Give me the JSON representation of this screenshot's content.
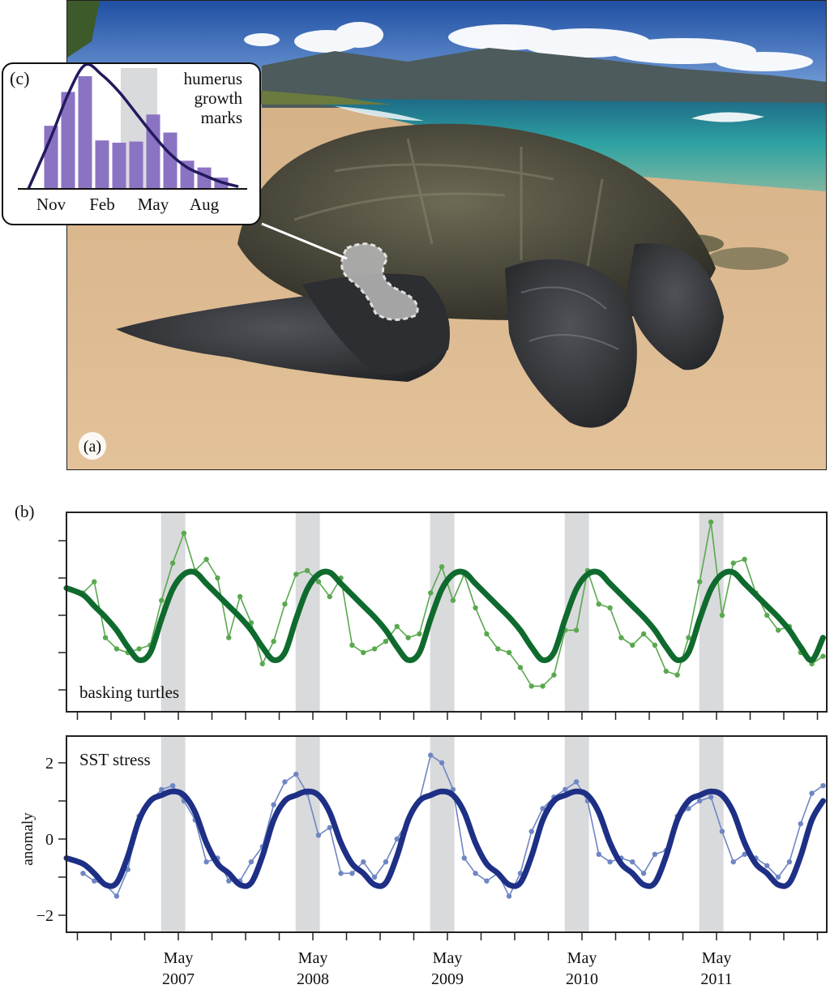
{
  "panel_a": {
    "label": "(a)",
    "inset_line_color": "#ffffff"
  },
  "chart_data": [
    {
      "panel": "(c)",
      "type": "bar",
      "title": "humerus growth marks",
      "title_lines": [
        "humerus",
        "growth",
        "marks"
      ],
      "categories": [
        "Nov",
        "Dec",
        "Jan",
        "Feb",
        "Mar",
        "Apr",
        "May",
        "Jun",
        "Jul",
        "Aug",
        "Sep"
      ],
      "tick_labels": [
        "Nov",
        "Feb",
        "May",
        "Aug"
      ],
      "values_relative": [
        56,
        86,
        100,
        43,
        41,
        42,
        66,
        50,
        25,
        19,
        10
      ],
      "density_curve": {
        "months": [
          "Oct",
          "Nov",
          "Dec",
          "Jan",
          "Feb",
          "Mar",
          "Apr",
          "May",
          "Jun",
          "Jul",
          "Aug",
          "Sep",
          "Oct"
        ],
        "values_relative": [
          0,
          46,
          84,
          110,
          101,
          86,
          67,
          48,
          31,
          19,
          12,
          6,
          2
        ]
      },
      "shaded_months": [
        "Mar",
        "May"
      ],
      "colors": {
        "bars": "#8b73c3",
        "curve": "#231a5e",
        "shade": "#d9dadc"
      }
    },
    {
      "panel": "(b)",
      "type": "line",
      "x_start": "2006-07",
      "x_end": "2012-02",
      "x_tick_labels": [
        {
          "month": "May",
          "year": "2007"
        },
        {
          "month": "May",
          "year": "2008"
        },
        {
          "month": "May",
          "year": "2009"
        },
        {
          "month": "May",
          "year": "2010"
        },
        {
          "month": "May",
          "year": "2011"
        }
      ],
      "x_ticks": "quarterly (Feb, May, Aug, Nov)",
      "shaded_periods": [
        [
          "2007-03-15",
          "2007-05-20"
        ],
        [
          "2008-03-15",
          "2008-05-20"
        ],
        [
          "2009-03-15",
          "2009-05-20"
        ],
        [
          "2010-03-15",
          "2010-05-20"
        ],
        [
          "2011-03-15",
          "2011-05-20"
        ]
      ],
      "months": [
        "2006-08",
        "2006-09",
        "2006-10",
        "2006-11",
        "2006-12",
        "2007-01",
        "2007-02",
        "2007-03",
        "2007-04",
        "2007-05",
        "2007-06",
        "2007-07",
        "2007-08",
        "2007-09",
        "2007-10",
        "2007-11",
        "2007-12",
        "2008-01",
        "2008-02",
        "2008-03",
        "2008-04",
        "2008-05",
        "2008-06",
        "2008-07",
        "2008-08",
        "2008-09",
        "2008-10",
        "2008-11",
        "2008-12",
        "2009-01",
        "2009-02",
        "2009-03",
        "2009-04",
        "2009-05",
        "2009-06",
        "2009-07",
        "2009-08",
        "2009-09",
        "2009-10",
        "2009-11",
        "2009-12",
        "2010-01",
        "2010-02",
        "2010-03",
        "2010-04",
        "2010-05",
        "2010-06",
        "2010-07",
        "2010-08",
        "2010-09",
        "2010-10",
        "2010-11",
        "2010-12",
        "2011-01",
        "2011-02",
        "2011-03",
        "2011-04",
        "2011-05",
        "2011-06",
        "2011-07",
        "2011-08",
        "2011-09",
        "2011-10",
        "2011-11",
        "2011-12",
        "2012-01",
        "2012-02"
      ],
      "panels": [
        {
          "name": "basking turtles",
          "ylabel": "",
          "ylim": [
            -2.2,
            2.7
          ],
          "y_ticks": [
            -2,
            -1,
            0,
            1,
            2
          ],
          "y_tick_labels_shown": false,
          "observed_color": "#5aa84f",
          "fit_color": "#0f6a2e",
          "observed": [
            0.6,
            0.9,
            -0.6,
            -0.9,
            -1.0,
            -0.9,
            -0.8,
            0.4,
            1.4,
            2.2,
            1.2,
            1.5,
            1.0,
            -0.6,
            0.5,
            -0.2,
            -1.3,
            -0.7,
            0.3,
            1.1,
            1.2,
            0.9,
            0.5,
            1.0,
            -0.8,
            -1.0,
            -0.9,
            -0.7,
            -0.3,
            -0.6,
            -0.5,
            0.6,
            1.3,
            0.4,
            1.1,
            0.2,
            -0.5,
            -0.9,
            -1.0,
            -1.4,
            -1.9,
            -1.9,
            -1.6,
            -0.4,
            -0.4,
            1.2,
            0.3,
            0.2,
            -0.6,
            -0.8,
            -0.5,
            -0.8,
            -1.5,
            -1.6,
            -0.6,
            0.9,
            2.5,
            0.0,
            1.4,
            1.5,
            0.6,
            0.0,
            -0.4,
            -0.3,
            -1.0,
            -1.3,
            -1.1
          ],
          "fit": [
            0.55,
            0.25,
            -0.05,
            -0.4,
            -0.85,
            -1.2,
            -1.0,
            -0.1,
            0.7,
            1.1,
            1.15,
            0.85,
            0.55,
            0.25,
            -0.05,
            -0.4,
            -0.85,
            -1.2,
            -1.0,
            -0.1,
            0.7,
            1.1,
            1.15,
            0.85,
            0.55,
            0.25,
            -0.05,
            -0.4,
            -0.85,
            -1.2,
            -1.0,
            -0.1,
            0.7,
            1.1,
            1.15,
            0.85,
            0.55,
            0.25,
            -0.05,
            -0.4,
            -0.85,
            -1.2,
            -1.0,
            -0.1,
            0.7,
            1.1,
            1.15,
            0.85,
            0.55,
            0.25,
            -0.05,
            -0.4,
            -0.85,
            -1.2,
            -1.0,
            -0.1,
            0.7,
            1.1,
            1.15,
            0.85,
            0.55,
            0.25,
            -0.05,
            -0.4,
            -0.85,
            -1.2,
            -0.6
          ]
        },
        {
          "name": "SST stress",
          "ylabel": "anomaly",
          "ylim": [
            -2.5,
            2.7
          ],
          "y_ticks": [
            -2,
            -1,
            0,
            1,
            2
          ],
          "y_tick_labels": [
            "−2",
            "",
            "0",
            "",
            "2"
          ],
          "observed_color": "#6f86c4",
          "fit_color": "#1e2f86",
          "observed": [
            -0.9,
            -1.1,
            -1.2,
            -1.5,
            -0.8,
            0.6,
            1.0,
            1.3,
            1.4,
            1.0,
            0.5,
            -0.6,
            -0.5,
            -1.1,
            -1.1,
            -0.6,
            -0.2,
            0.9,
            1.5,
            1.7,
            1.2,
            0.1,
            0.3,
            -0.9,
            -0.9,
            -0.6,
            -1.0,
            -0.6,
            0.0,
            0.5,
            1.0,
            2.2,
            2.0,
            1.3,
            -0.5,
            -0.9,
            -1.1,
            -0.9,
            -1.5,
            -0.9,
            0.2,
            0.8,
            1.1,
            1.3,
            1.5,
            1.0,
            -0.4,
            -0.6,
            -0.5,
            -0.6,
            -0.9,
            -0.4,
            -0.3,
            0.6,
            0.8,
            1.0,
            1.1,
            0.2,
            -0.6,
            -0.4,
            -0.5,
            -0.7,
            -1.0,
            -0.6,
            0.4,
            1.2,
            1.4
          ],
          "fit": [
            -0.65,
            -0.9,
            -1.2,
            -1.15,
            -0.45,
            0.5,
            1.0,
            1.15,
            1.25,
            1.15,
            0.7,
            -0.1,
            -0.65,
            -0.9,
            -1.2,
            -1.15,
            -0.45,
            0.5,
            1.0,
            1.15,
            1.25,
            1.15,
            0.7,
            -0.1,
            -0.65,
            -0.9,
            -1.2,
            -1.15,
            -0.45,
            0.5,
            1.0,
            1.15,
            1.25,
            1.15,
            0.7,
            -0.1,
            -0.65,
            -0.9,
            -1.2,
            -1.15,
            -0.45,
            0.5,
            1.0,
            1.15,
            1.25,
            1.15,
            0.7,
            -0.1,
            -0.65,
            -0.9,
            -1.2,
            -1.15,
            -0.45,
            0.5,
            1.0,
            1.15,
            1.25,
            1.15,
            0.7,
            -0.1,
            -0.65,
            -0.9,
            -1.2,
            -1.15,
            -0.45,
            0.5,
            1.0
          ]
        }
      ],
      "shade_color": "#d9dadc"
    }
  ]
}
